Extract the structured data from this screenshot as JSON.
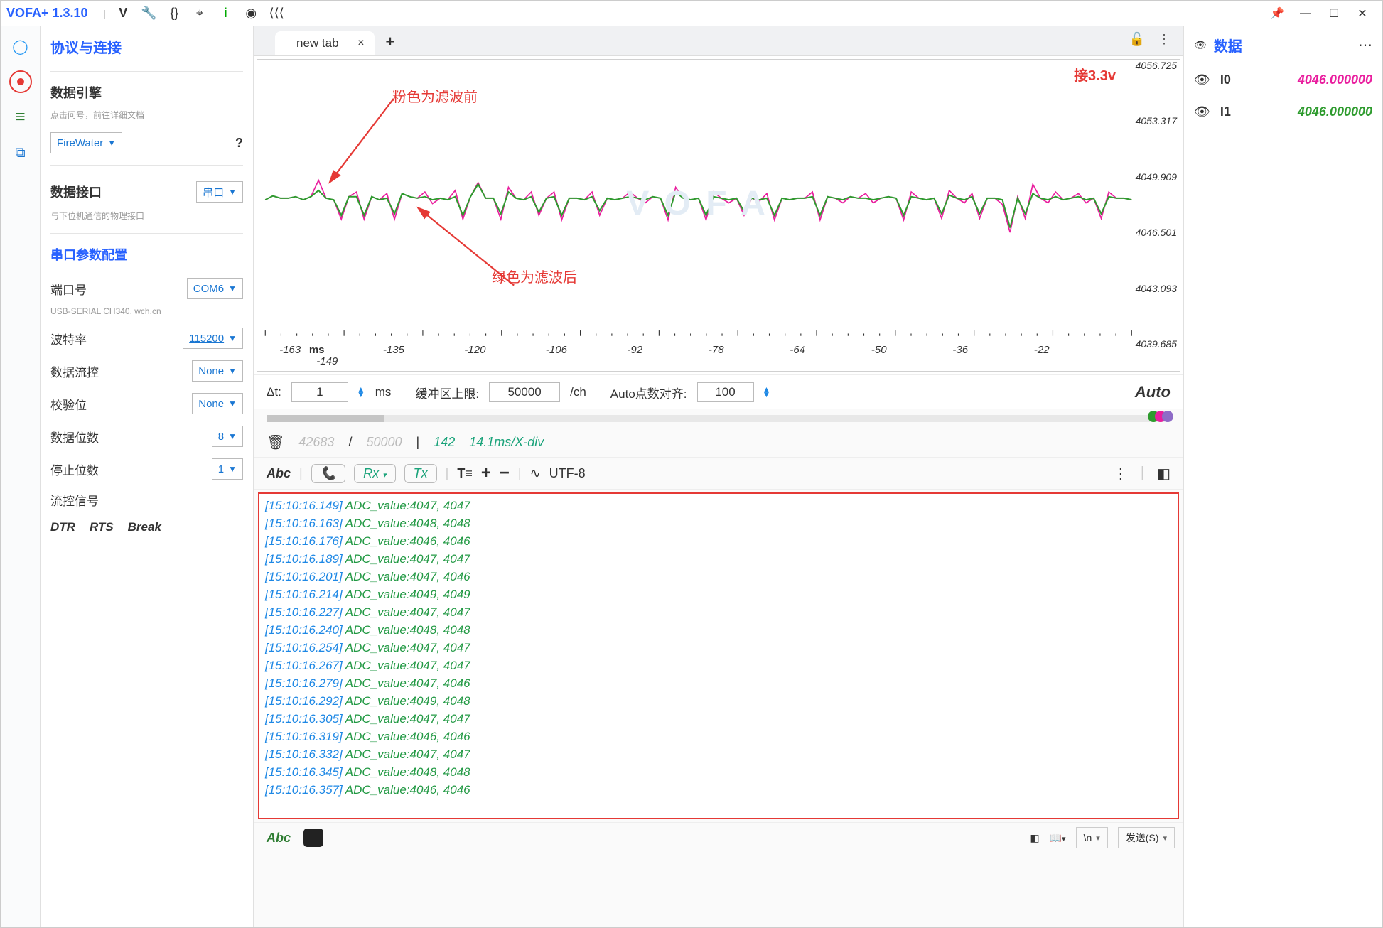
{
  "titlebar": {
    "app_name": "VOFA+ 1.3.10"
  },
  "sidebar": {
    "protocol_title": "协议与连接",
    "engine_title": "数据引擎",
    "engine_hint": "点击问号，前往详细文档",
    "engine_value": "FireWater",
    "interface_title": "数据接口",
    "interface_value": "串口",
    "interface_hint": "与下位机通信的物理接口",
    "serial_title": "串口参数配置",
    "port_label": "端口号",
    "port_value": "COM6",
    "port_hint": "USB-SERIAL CH340, wch.cn",
    "baud_label": "波特率",
    "baud_value": "115200",
    "flow_label": "数据流控",
    "flow_value": "None",
    "parity_label": "校验位",
    "parity_value": "None",
    "databits_label": "数据位数",
    "databits_value": "8",
    "stopbits_label": "停止位数",
    "stopbits_value": "1",
    "signal_label": "流控信号",
    "sig_dtr": "DTR",
    "sig_rts": "RTS",
    "sig_break": "Break"
  },
  "tabs": {
    "t0": "new tab"
  },
  "chart": {
    "watermark": "V O F A",
    "corner_label": "接3.3v",
    "annot_pink": "粉色为滤波前",
    "annot_green": "绿色为滤波后",
    "yticks": [
      "4056.725",
      "4053.317",
      "4049.909",
      "4046.501",
      "4043.093",
      "4039.685"
    ],
    "xticks": [
      {
        "pos": 3,
        "label": "-163"
      },
      {
        "pos": 7,
        "label": "ms"
      },
      {
        "pos": 8,
        "label": "-149"
      },
      {
        "pos": 17,
        "label": "-135"
      },
      {
        "pos": 28,
        "label": "-120"
      },
      {
        "pos": 39,
        "label": "-106"
      },
      {
        "pos": 50,
        "label": "-92"
      },
      {
        "pos": 61,
        "label": "-78"
      },
      {
        "pos": 72,
        "label": "-64"
      },
      {
        "pos": 83,
        "label": "-50"
      },
      {
        "pos": 94,
        "label": "-36"
      },
      {
        "pos": 105,
        "label": "-22"
      }
    ],
    "series_colors": {
      "pink": "#e91e9e",
      "green": "#2e9b2e"
    },
    "green_points": [
      180,
      175,
      178,
      178,
      176,
      180,
      176,
      168,
      178,
      180,
      200,
      176,
      176,
      200,
      176,
      180,
      178,
      198,
      172,
      176,
      178,
      176,
      180,
      178,
      180,
      176,
      200,
      176,
      160,
      178,
      178,
      198,
      170,
      178,
      180,
      176,
      196,
      178,
      176,
      200,
      178,
      178,
      180,
      176,
      194,
      178,
      180,
      178,
      176,
      178,
      180,
      176,
      178,
      200,
      170,
      178,
      180,
      178,
      200,
      176,
      178,
      180,
      178,
      195,
      178,
      180,
      178,
      200,
      178,
      180,
      178,
      178,
      176,
      200,
      176,
      178,
      180,
      176,
      178,
      178,
      180,
      178,
      176,
      178,
      200,
      176,
      178,
      180,
      178,
      198,
      174,
      178,
      180,
      176,
      198,
      178,
      178,
      180,
      216,
      178,
      198,
      172,
      178,
      180,
      176,
      180,
      178,
      176,
      180,
      178,
      198,
      176,
      178,
      178,
      180
    ],
    "pink_points": [
      180,
      175,
      178,
      178,
      176,
      180,
      176,
      155,
      178,
      180,
      205,
      176,
      170,
      205,
      176,
      180,
      172,
      205,
      172,
      176,
      178,
      170,
      185,
      178,
      180,
      168,
      205,
      176,
      158,
      178,
      178,
      205,
      164,
      178,
      180,
      170,
      200,
      178,
      170,
      206,
      178,
      178,
      180,
      170,
      200,
      178,
      180,
      178,
      170,
      178,
      184,
      176,
      178,
      206,
      164,
      178,
      180,
      178,
      206,
      170,
      178,
      184,
      178,
      200,
      178,
      182,
      172,
      206,
      178,
      180,
      178,
      178,
      170,
      206,
      176,
      178,
      184,
      176,
      178,
      172,
      184,
      178,
      176,
      178,
      206,
      170,
      178,
      180,
      178,
      204,
      168,
      178,
      184,
      172,
      204,
      178,
      178,
      186,
      222,
      176,
      204,
      160,
      178,
      184,
      170,
      180,
      178,
      172,
      184,
      178,
      204,
      170,
      178,
      178,
      180
    ]
  },
  "bufbar": {
    "dt_label": "Δt:",
    "dt_val": "1",
    "dt_unit": "ms",
    "buf_label": "缓冲区上限:",
    "buf_val": "50000",
    "buf_unit": "/ch",
    "align_label": "Auto点数对齐:",
    "align_val": "100",
    "auto_label": "Auto"
  },
  "stats": {
    "count": "42683",
    "sep": "/",
    "max": "50000",
    "bar": "|",
    "n": "142",
    "rate": "14.1ms/X-div"
  },
  "rxbar": {
    "abc": "Abc",
    "rx": "Rx",
    "tx": "Tx",
    "plus": "+",
    "minus": "−",
    "enc": "UTF-8"
  },
  "log": [
    {
      "ts": "[15:10:16.149]",
      "msg": " ADC_value:4047, 4047"
    },
    {
      "ts": "[15:10:16.163]",
      "msg": " ADC_value:4048, 4048"
    },
    {
      "ts": "[15:10:16.176]",
      "msg": " ADC_value:4046, 4046"
    },
    {
      "ts": "[15:10:16.189]",
      "msg": " ADC_value:4047, 4047"
    },
    {
      "ts": "[15:10:16.201]",
      "msg": " ADC_value:4047, 4046"
    },
    {
      "ts": "[15:10:16.214]",
      "msg": " ADC_value:4049, 4049"
    },
    {
      "ts": "[15:10:16.227]",
      "msg": " ADC_value:4047, 4047"
    },
    {
      "ts": "[15:10:16.240]",
      "msg": " ADC_value:4048, 4048"
    },
    {
      "ts": "[15:10:16.254]",
      "msg": " ADC_value:4047, 4047"
    },
    {
      "ts": "[15:10:16.267]",
      "msg": " ADC_value:4047, 4047"
    },
    {
      "ts": "[15:10:16.279]",
      "msg": " ADC_value:4047, 4046"
    },
    {
      "ts": "[15:10:16.292]",
      "msg": " ADC_value:4049, 4048"
    },
    {
      "ts": "[15:10:16.305]",
      "msg": " ADC_value:4047, 4047"
    },
    {
      "ts": "[15:10:16.319]",
      "msg": " ADC_value:4046, 4046"
    },
    {
      "ts": "[15:10:16.332]",
      "msg": " ADC_value:4047, 4047"
    },
    {
      "ts": "[15:10:16.345]",
      "msg": " ADC_value:4048, 4048"
    },
    {
      "ts": "[15:10:16.357]",
      "msg": " ADC_value:4046, 4046"
    }
  ],
  "sendbar": {
    "abc": "Abc",
    "nl": "\\n",
    "send": "发送(S)"
  },
  "rightpanel": {
    "title": "数据",
    "i0_name": "I0",
    "i0_val": "4046.000000",
    "i0_color": "#e91e9e",
    "i1_name": "I1",
    "i1_val": "4046.000000",
    "i1_color": "#2e9b2e"
  }
}
